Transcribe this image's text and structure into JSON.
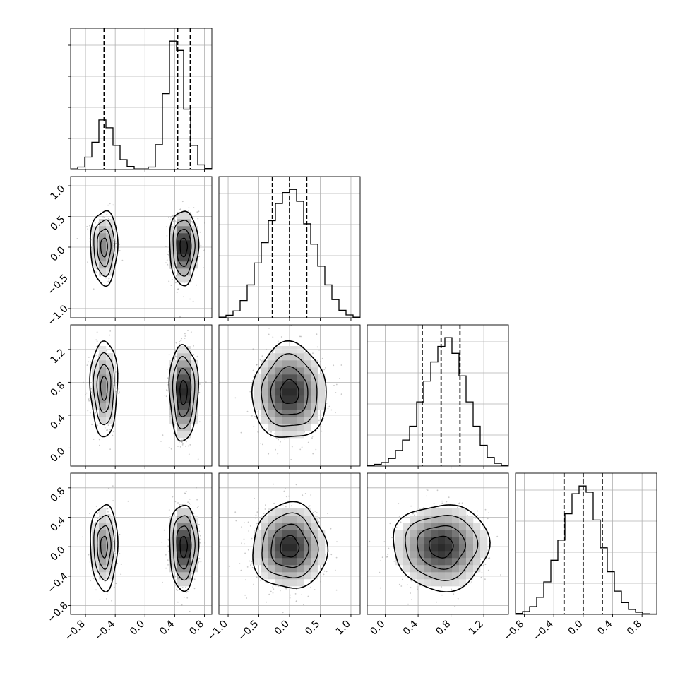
{
  "chart_data": {
    "type": "corner",
    "grid": true,
    "parameters": [
      {
        "range": [
          -1.0,
          0.9
        ],
        "tick_values": [
          -0.8,
          -0.4,
          0.0,
          0.4,
          0.8
        ],
        "tick_labels": [
          "−0.8",
          "−0.4",
          "0.0",
          "0.4",
          "0.8"
        ]
      },
      {
        "range": [
          -1.15,
          1.15
        ],
        "tick_values": [
          -1.0,
          -0.5,
          0.0,
          0.5,
          1.0
        ],
        "tick_labels": [
          "−1.0",
          "−0.5",
          "0.0",
          "0.5",
          "1.0"
        ]
      },
      {
        "range": [
          -0.22,
          1.5
        ],
        "tick_values": [
          0.0,
          0.4,
          0.8,
          1.2
        ],
        "tick_labels": [
          "0.0",
          "0.4",
          "0.8",
          "1.2"
        ]
      },
      {
        "range": [
          -0.92,
          1.0
        ],
        "tick_values": [
          -0.8,
          -0.4,
          0.0,
          0.4,
          0.8
        ],
        "tick_labels": [
          "−0.8",
          "−0.4",
          "0.0",
          "0.4",
          "0.8"
        ]
      }
    ],
    "histograms": [
      {
        "param": 0,
        "bin_edges": [
          -1.0,
          -0.905,
          -0.81,
          -0.715,
          -0.62,
          -0.525,
          -0.43,
          -0.335,
          -0.24,
          -0.145,
          -0.05,
          0.045,
          0.14,
          0.235,
          0.33,
          0.425,
          0.52,
          0.615,
          0.71,
          0.805,
          0.9
        ],
        "counts": [
          2,
          8,
          40,
          88,
          160,
          135,
          78,
          32,
          10,
          2,
          2,
          8,
          80,
          245,
          415,
          385,
          195,
          78,
          15,
          3
        ],
        "quantiles": [
          -0.55,
          0.44,
          0.61
        ]
      },
      {
        "param": 1,
        "bin_edges": [
          -1.15,
          -1.035,
          -0.92,
          -0.805,
          -0.69,
          -0.575,
          -0.46,
          -0.345,
          -0.23,
          -0.115,
          0.0,
          0.115,
          0.23,
          0.345,
          0.46,
          0.575,
          0.69,
          0.805,
          0.92,
          1.035,
          1.15
        ],
        "counts": [
          2,
          8,
          22,
          55,
          105,
          175,
          240,
          310,
          365,
          400,
          410,
          372,
          300,
          235,
          165,
          105,
          58,
          24,
          9,
          2
        ],
        "quantiles": [
          -0.28,
          0.0,
          0.28
        ]
      },
      {
        "param": 2,
        "bin_edges": [
          -0.22,
          -0.134,
          -0.048,
          0.038,
          0.124,
          0.21,
          0.296,
          0.382,
          0.468,
          0.554,
          0.64,
          0.726,
          0.812,
          0.898,
          0.984,
          1.07,
          1.156,
          1.242,
          1.328,
          1.414,
          1.5
        ],
        "counts": [
          2,
          5,
          10,
          22,
          45,
          75,
          115,
          185,
          245,
          300,
          345,
          370,
          325,
          260,
          185,
          115,
          60,
          25,
          8,
          2
        ],
        "quantiles": [
          0.45,
          0.68,
          0.91
        ]
      },
      {
        "param": 3,
        "bin_edges": [
          -0.92,
          -0.824,
          -0.728,
          -0.632,
          -0.536,
          -0.44,
          -0.344,
          -0.248,
          -0.152,
          -0.056,
          0.04,
          0.136,
          0.232,
          0.328,
          0.424,
          0.52,
          0.616,
          0.712,
          0.808,
          0.904,
          1.0
        ],
        "counts": [
          3,
          9,
          25,
          55,
          105,
          175,
          240,
          325,
          390,
          415,
          395,
          305,
          215,
          138,
          75,
          38,
          16,
          7,
          2,
          1
        ],
        "quantiles": [
          -0.26,
          0.0,
          0.26
        ]
      }
    ],
    "joint_panels": [
      {
        "x_param": 0,
        "y_param": 1,
        "modes": [
          {
            "cx": -0.55,
            "cy": 0.0,
            "sx": 0.085,
            "sy": 0.28,
            "weight": 0.32
          },
          {
            "cx": 0.52,
            "cy": 0.0,
            "sx": 0.09,
            "sy": 0.28,
            "weight": 0.68
          }
        ]
      },
      {
        "x_param": 0,
        "y_param": 2,
        "modes": [
          {
            "cx": -0.55,
            "cy": 0.73,
            "sx": 0.085,
            "sy": 0.27,
            "weight": 0.32
          },
          {
            "cx": 0.52,
            "cy": 0.68,
            "sx": 0.09,
            "sy": 0.27,
            "weight": 0.68
          }
        ]
      },
      {
        "x_param": 1,
        "y_param": 2,
        "modes": [
          {
            "cx": 0.0,
            "cy": 0.68,
            "sx": 0.28,
            "sy": 0.27,
            "weight": 1.0
          }
        ]
      },
      {
        "x_param": 0,
        "y_param": 3,
        "modes": [
          {
            "cx": -0.55,
            "cy": 0.0,
            "sx": 0.085,
            "sy": 0.27,
            "weight": 0.32
          },
          {
            "cx": 0.52,
            "cy": 0.0,
            "sx": 0.09,
            "sy": 0.27,
            "weight": 0.68
          }
        ]
      },
      {
        "x_param": 1,
        "y_param": 3,
        "modes": [
          {
            "cx": 0.0,
            "cy": 0.0,
            "sx": 0.28,
            "sy": 0.27,
            "weight": 1.0
          }
        ]
      },
      {
        "x_param": 2,
        "y_param": 3,
        "modes": [
          {
            "cx": 0.68,
            "cy": 0.0,
            "sx": 0.27,
            "sy": 0.27,
            "weight": 1.0
          }
        ]
      }
    ],
    "contour_levels_sigma": [
      0.5,
      1.0,
      1.5,
      2.0
    ],
    "colors": {
      "line": "#000000",
      "grid": "#b0b0b0",
      "density_max": "#2b2b2b",
      "points": "#9a9a9a"
    }
  }
}
